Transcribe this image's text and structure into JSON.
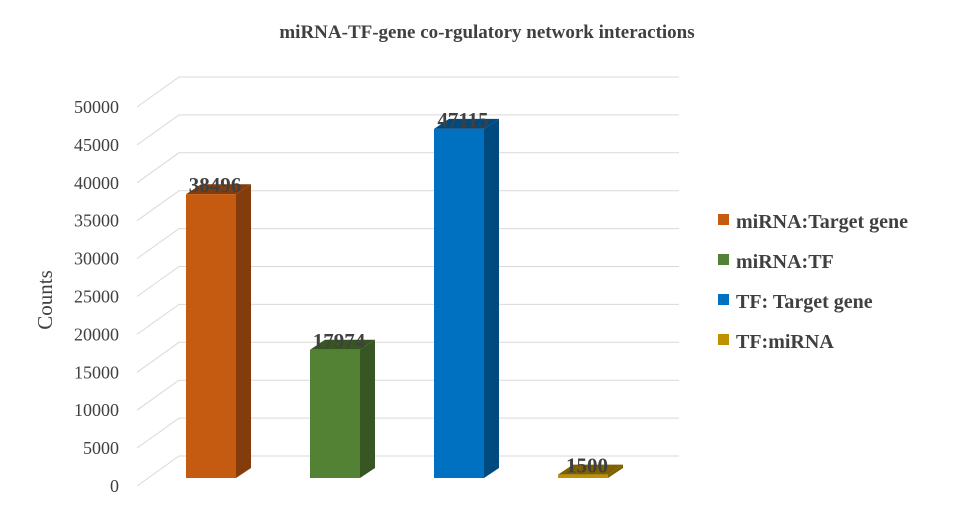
{
  "chart_data": {
    "type": "bar",
    "title": "miRNA-TF-gene co-rgulatory network interactions",
    "xlabel": "",
    "ylabel": "Counts",
    "ylim": [
      0,
      50000
    ],
    "yticks": [
      "0",
      "5000",
      "10000",
      "15000",
      "20000",
      "25000",
      "30000",
      "35000",
      "40000",
      "45000",
      "50000"
    ],
    "grid": true,
    "legend_position": "right",
    "series": [
      {
        "name": "miRNA:Target gene",
        "value": 38496,
        "label": "38496",
        "color": "#C55A11",
        "side_color": "#843C0C"
      },
      {
        "name": "miRNA:TF",
        "value": 17974,
        "label": "17974",
        "color": "#548235",
        "side_color": "#375623"
      },
      {
        "name": "TF: Target gene",
        "value": 47115,
        "label": "47115",
        "color": "#0070C0",
        "side_color": "#004A80"
      },
      {
        "name": "TF:miRNA",
        "value": 1500,
        "label": "1500",
        "color": "#BF9000",
        "side_color": "#7F6000"
      }
    ]
  }
}
